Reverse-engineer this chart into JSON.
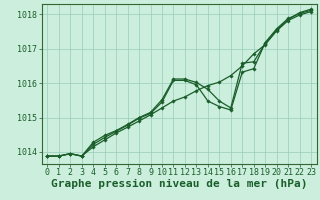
{
  "background_color": "#cceedd",
  "plot_bg_color": "#cceedd",
  "grid_color": "#99ccbb",
  "line_color": "#1a5e2a",
  "spine_color": "#336633",
  "x_ticks": [
    0,
    1,
    2,
    3,
    4,
    5,
    6,
    7,
    8,
    9,
    10,
    11,
    12,
    13,
    14,
    15,
    16,
    17,
    18,
    19,
    20,
    21,
    22,
    23
  ],
  "y_ticks": [
    1014,
    1015,
    1016,
    1017,
    1018
  ],
  "ylim": [
    1013.65,
    1018.3
  ],
  "xlim": [
    -0.5,
    23.5
  ],
  "xlabel": "Graphe pression niveau de la mer (hPa)",
  "series": [
    [
      1013.88,
      1013.88,
      1013.95,
      1013.88,
      1014.15,
      1014.35,
      1014.55,
      1014.72,
      1014.9,
      1015.08,
      1015.28,
      1015.48,
      1015.6,
      1015.78,
      1015.93,
      1016.03,
      1016.22,
      1016.5,
      1016.85,
      1017.12,
      1017.52,
      1017.82,
      1017.98,
      1018.08
    ],
    [
      1013.88,
      1013.88,
      1013.95,
      1013.88,
      1014.22,
      1014.42,
      1014.6,
      1014.78,
      1014.98,
      1015.12,
      1015.45,
      1016.08,
      1016.08,
      1015.95,
      1015.48,
      1015.32,
      1015.22,
      1016.32,
      1016.42,
      1017.18,
      1017.58,
      1017.88,
      1018.02,
      1018.12
    ],
    [
      1013.88,
      1013.88,
      1013.95,
      1013.88,
      1014.28,
      1014.48,
      1014.62,
      1014.8,
      1015.0,
      1015.15,
      1015.52,
      1016.12,
      1016.12,
      1016.02,
      1015.82,
      1015.48,
      1015.28,
      1016.58,
      1016.62,
      1017.15,
      1017.55,
      1017.85,
      1018.05,
      1018.15
    ]
  ],
  "title_fontsize": 8,
  "tick_fontsize": 6,
  "line_width": 0.9,
  "marker": "D",
  "marker_size": 1.8
}
